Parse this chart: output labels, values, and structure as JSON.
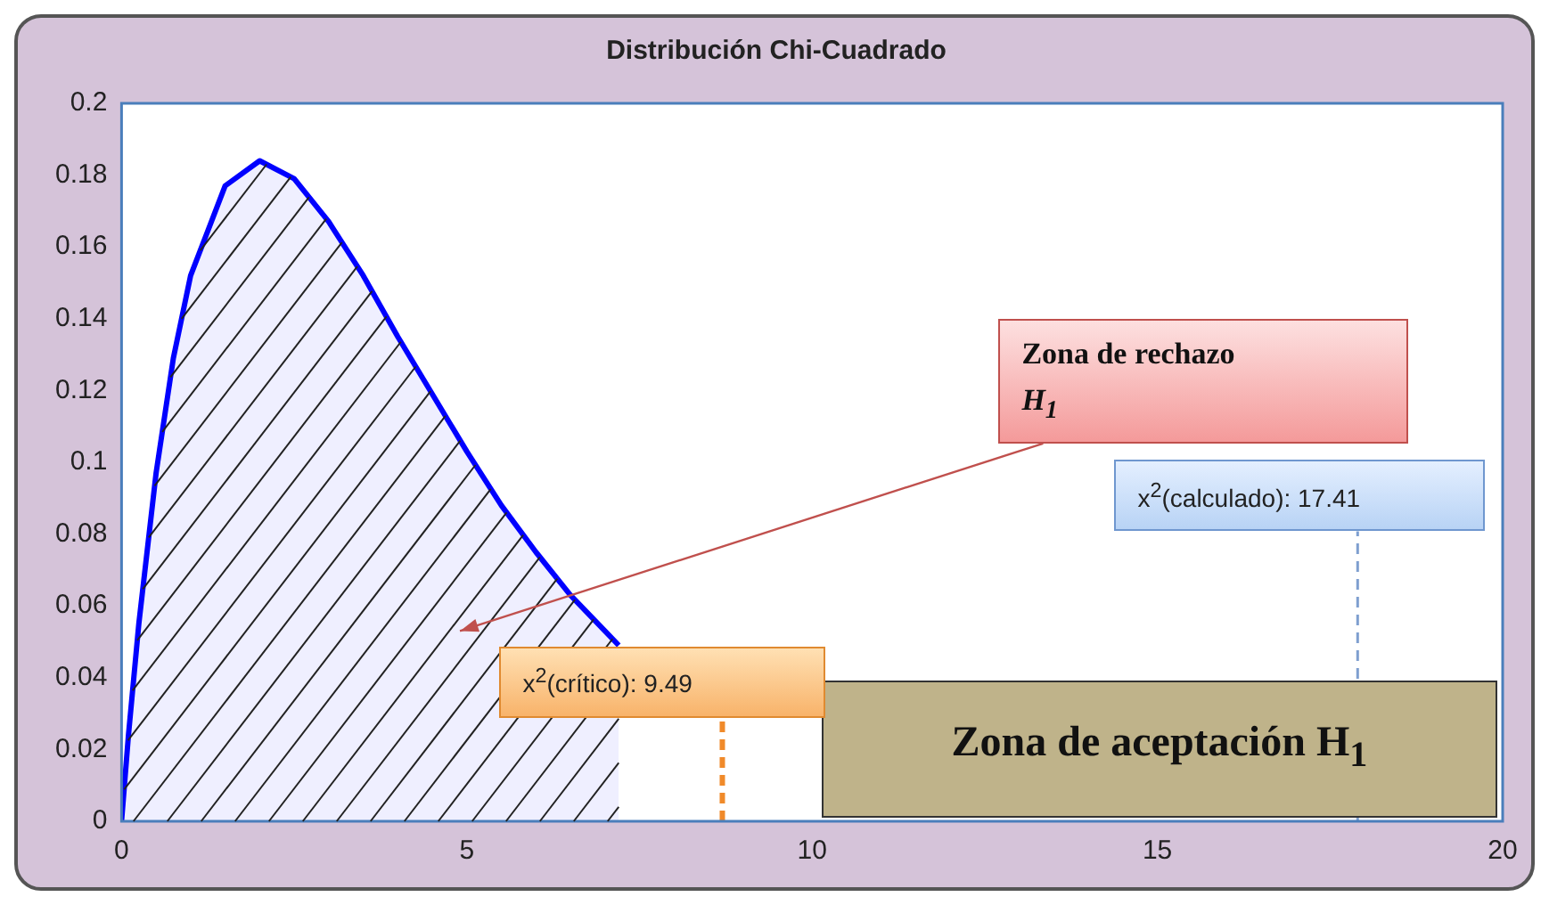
{
  "chart_data": {
    "type": "area",
    "title": "Distribución Chi-Cuadrado",
    "x": [
      0,
      0.1,
      0.25,
      0.5,
      0.75,
      1,
      1.5,
      2,
      2.5,
      3,
      3.5,
      4,
      4.5,
      5,
      5.5,
      6,
      6.5,
      7,
      7.2
    ],
    "series": [
      {
        "color": "#0000ff",
        "values": [
          0,
          0.024,
          0.055,
          0.097,
          0.129,
          0.152,
          0.177,
          0.184,
          0.179,
          0.167,
          0.152,
          0.135,
          0.119,
          0.103,
          0.088,
          0.075,
          0.063,
          0.053,
          0.049
        ]
      }
    ],
    "xlim": [
      0,
      20
    ],
    "xticks": [
      0,
      5,
      10,
      15,
      20
    ],
    "ylim": [
      0,
      0.2
    ],
    "yticks": [
      0,
      0.02,
      0.04,
      0.06,
      0.08,
      0.1,
      0.12,
      0.14,
      0.16,
      0.18,
      0.2
    ],
    "grid": false,
    "legend": false,
    "marker": "none",
    "line_style": "solid",
    "ref_lines": [
      {
        "axis": "x",
        "value": 8.7,
        "color": "#f08a2a",
        "line_style": "dashed"
      },
      {
        "axis": "x",
        "value": 17.9,
        "color": "#7f9fd0",
        "line_style": "dashed"
      }
    ],
    "annotations": [
      "Zona de rechazo H$_{1}$",
      "Zona de aceptación H$_{1}$",
      {
        "text": "x$^{2}$(crítico): 9.49",
        "x": 8.7,
        "y": 0.029
      },
      "x$^{2}$(calculado): 17.41"
    ]
  }
}
